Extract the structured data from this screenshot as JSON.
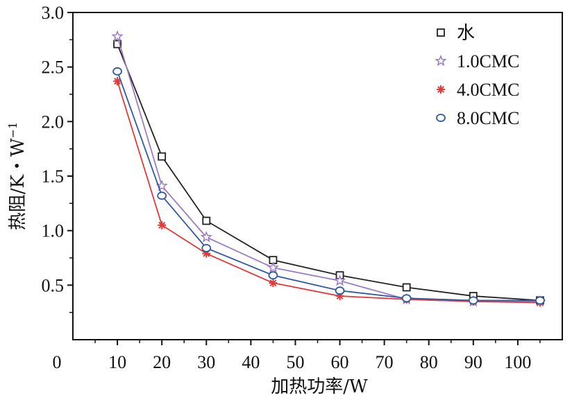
{
  "chart_data": {
    "type": "line",
    "title": "",
    "xlabel": "加热功率/W",
    "ylabel": "热阻/K・W",
    "ylabel_superscript": "−1",
    "xlim": [
      0,
      110
    ],
    "ylim": [
      0.0,
      3.0
    ],
    "x_origin_label": "0",
    "xticks": [
      10,
      20,
      30,
      40,
      50,
      60,
      70,
      80,
      90,
      100
    ],
    "xtick_labels": [
      "10",
      "20",
      "30",
      "40",
      "50",
      "60",
      "70",
      "80",
      "90",
      "100"
    ],
    "yticks": [
      0.5,
      1.0,
      1.5,
      2.0,
      2.5,
      3.0
    ],
    "ytick_labels": [
      "0.5",
      "1.0",
      "1.5",
      "2.0",
      "2.5",
      "3.0"
    ],
    "legend_position": "top-right",
    "grid": false,
    "x": [
      10,
      20,
      30,
      45,
      60,
      75,
      90,
      105
    ],
    "series": [
      {
        "name": "水",
        "marker": "square",
        "color": "#222222",
        "values": [
          2.71,
          1.68,
          1.09,
          0.73,
          0.59,
          0.48,
          0.4,
          0.36
        ]
      },
      {
        "name": "1.0CMC",
        "marker": "star",
        "color": "#9b7cc4",
        "values": [
          2.78,
          1.41,
          0.94,
          0.66,
          0.54,
          0.37,
          0.35,
          0.35
        ]
      },
      {
        "name": "4.0CMC",
        "marker": "asterisk",
        "color": "#e03a3a",
        "values": [
          2.37,
          1.05,
          0.79,
          0.52,
          0.4,
          0.37,
          0.35,
          0.34
        ]
      },
      {
        "name": "8.0CMC",
        "marker": "circle",
        "color": "#2d5aa0",
        "values": [
          2.46,
          1.32,
          0.84,
          0.59,
          0.45,
          0.38,
          0.36,
          0.36
        ]
      }
    ]
  }
}
